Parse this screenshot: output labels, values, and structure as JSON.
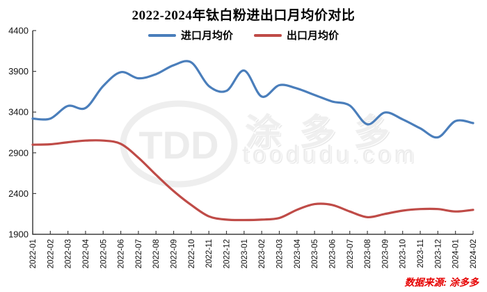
{
  "title": "2022-2024年钛白粉进出口月均价对比",
  "legend": [
    {
      "label": "进口月均价",
      "color": "#4a7ebb"
    },
    {
      "label": "出口月均价",
      "color": "#bf4b47"
    }
  ],
  "watermark": {
    "logo": "TDD",
    "brand": "涂多多",
    "site": "toodudu.com"
  },
  "source_note": "数据来源: 涂多多",
  "colors": {
    "axis": "#3f3f3f",
    "tick_label": "#111111",
    "background": "#ffffff"
  },
  "chart_data": {
    "type": "line",
    "title": "2022-2024年钛白粉进出口月均价对比",
    "xlabel": "",
    "ylabel": "",
    "ylim": [
      1900,
      4400
    ],
    "yticks": [
      4400,
      3900,
      3400,
      2900,
      2400,
      1900
    ],
    "grid": false,
    "legend_position": "top",
    "categories": [
      "2022-01",
      "2022-02",
      "2022-03",
      "2022-04",
      "2022-05",
      "2022-06",
      "2022-07",
      "2022-08",
      "2022-09",
      "2022-10",
      "2022-11",
      "2022-12",
      "2023-01",
      "2023-02",
      "2023-03",
      "2023-04",
      "2023-05",
      "2023-06",
      "2023-07",
      "2023-08",
      "2023-09",
      "2023-10",
      "2023-11",
      "2023-12",
      "2024-01",
      "2024-02"
    ],
    "series": [
      {
        "name": "进口月均价",
        "color": "#4a7ebb",
        "values": [
          3320,
          3320,
          3475,
          3450,
          3720,
          3890,
          3815,
          3865,
          3975,
          4010,
          3720,
          3660,
          3910,
          3590,
          3730,
          3690,
          3610,
          3530,
          3480,
          3250,
          3395,
          3310,
          3200,
          3090,
          3290,
          3265
        ]
      },
      {
        "name": "出口月均价",
        "color": "#bf4b47",
        "values": [
          3000,
          3005,
          3030,
          3050,
          3050,
          3010,
          2840,
          2630,
          2430,
          2260,
          2120,
          2080,
          2075,
          2080,
          2100,
          2200,
          2270,
          2260,
          2180,
          2110,
          2150,
          2190,
          2210,
          2210,
          2180,
          2200
        ]
      }
    ]
  }
}
